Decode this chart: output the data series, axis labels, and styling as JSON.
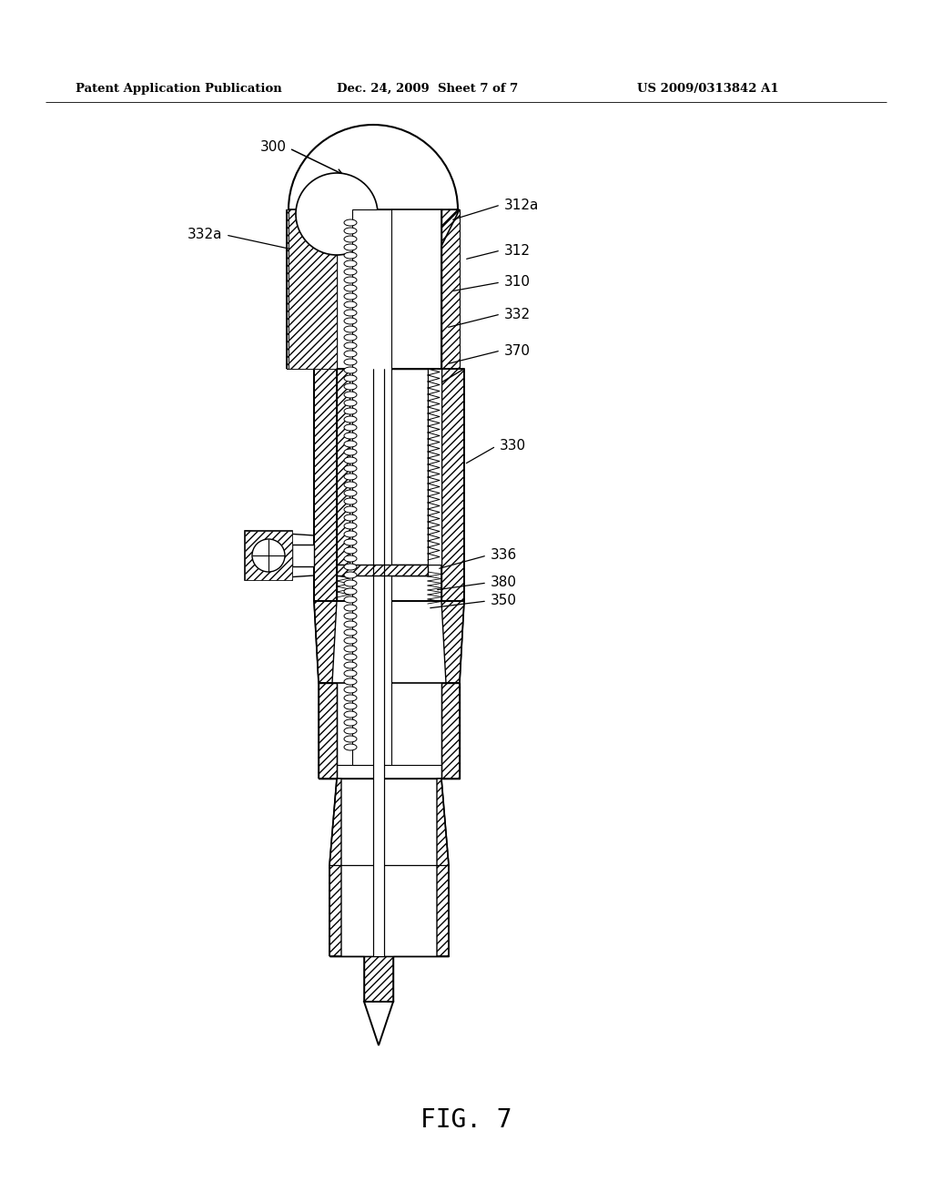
{
  "title_left": "Patent Application Publication",
  "title_mid": "Dec. 24, 2009  Sheet 7 of 7",
  "title_right": "US 2009/0313842 A1",
  "fig_label": "FIG. 7",
  "ref_300": "300",
  "ref_332a": "332a",
  "ref_312a": "312a",
  "ref_312": "312",
  "ref_310": "310",
  "ref_332": "332",
  "ref_370": "370",
  "ref_330": "330",
  "ref_336": "336",
  "ref_380": "380",
  "ref_350": "350",
  "bg_color": "#ffffff",
  "line_color": "#000000"
}
